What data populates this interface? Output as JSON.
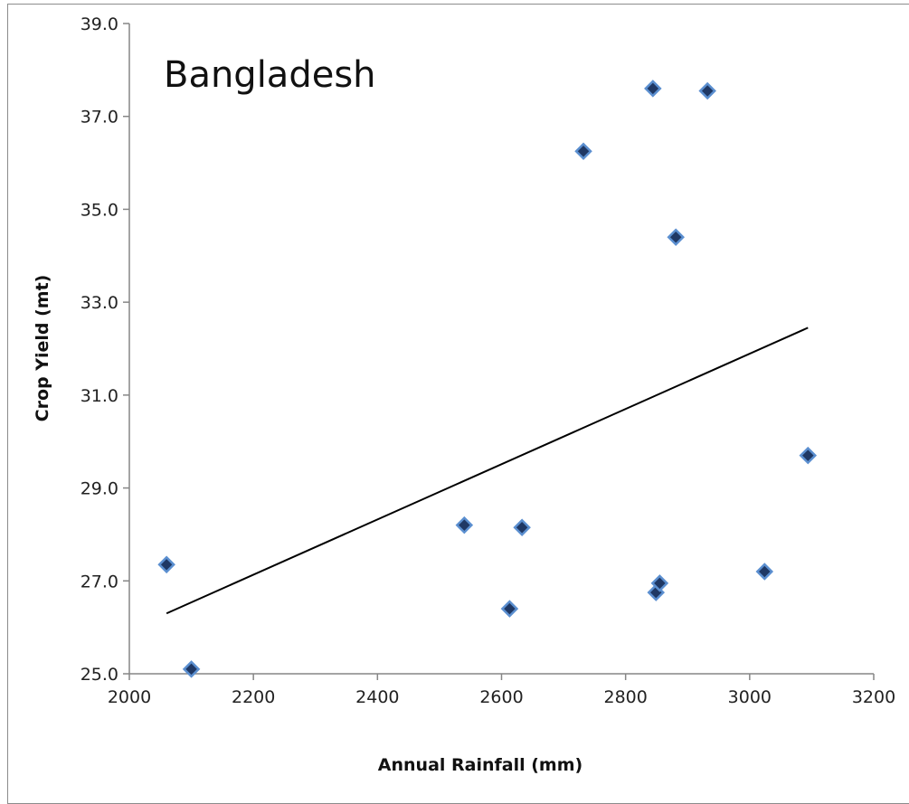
{
  "chart_data": {
    "type": "scatter",
    "title": "Bangladesh",
    "xlabel": "Annual Rainfall (mm)",
    "ylabel": "Crop Yield (mt)",
    "xlim": [
      2000,
      3200
    ],
    "ylim": [
      25.0,
      39.0
    ],
    "x_ticks": [
      "2000",
      "2200",
      "2400",
      "2600",
      "2800",
      "3000",
      "3200"
    ],
    "y_ticks": [
      "25.0",
      "27.0",
      "29.0",
      "31.0",
      "33.0",
      "35.0",
      "37.0",
      "39.0"
    ],
    "grid": false,
    "legend": "none",
    "marker": "diamond",
    "marker_color": "#1f3864",
    "marker_edge_color": "#5b8fd0",
    "trendline_color": "#000000",
    "points": [
      {
        "x": 2060,
        "y": 27.35
      },
      {
        "x": 2100,
        "y": 25.1
      },
      {
        "x": 2540,
        "y": 28.2
      },
      {
        "x": 2613,
        "y": 26.4
      },
      {
        "x": 2633,
        "y": 28.15
      },
      {
        "x": 2732,
        "y": 36.25
      },
      {
        "x": 2844,
        "y": 37.6
      },
      {
        "x": 2849,
        "y": 26.75
      },
      {
        "x": 2855,
        "y": 26.95
      },
      {
        "x": 2881,
        "y": 34.4
      },
      {
        "x": 2932,
        "y": 37.55
      },
      {
        "x": 3024,
        "y": 27.2
      },
      {
        "x": 3094,
        "y": 29.7
      }
    ],
    "trendline": {
      "x": [
        2060,
        3094
      ],
      "y": [
        26.3,
        32.45
      ]
    }
  }
}
